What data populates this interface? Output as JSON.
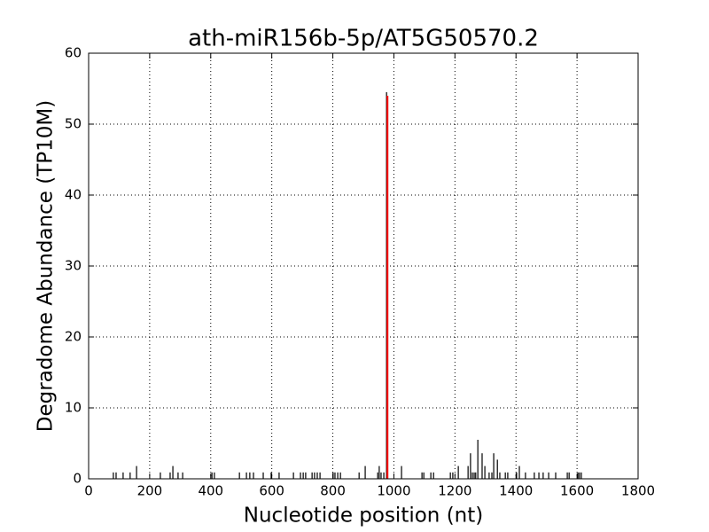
{
  "chart_data": {
    "type": "stem",
    "title": "ath-miR156b-5p/AT5G50570.2",
    "xlabel": "Nucleotide position (nt)",
    "ylabel": "Degradome Abundance (TP10M)",
    "xlim": [
      0,
      1800
    ],
    "xticks": [
      0,
      200,
      400,
      600,
      800,
      1000,
      1200,
      1400,
      1600,
      1800
    ],
    "ylim": [
      0,
      60
    ],
    "yticks": [
      0,
      10,
      20,
      30,
      40,
      50,
      60
    ],
    "grid": true,
    "series": [
      {
        "color": "#000000",
        "x": [
          81,
          90,
          113,
          136,
          157,
          235,
          267,
          276,
          293,
          308,
          404,
          412,
          494,
          517,
          528,
          540,
          572,
          598,
          624,
          671,
          694,
          703,
          711,
          732,
          740,
          749,
          758,
          801,
          807,
          816,
          825,
          886,
          906,
          947,
          952,
          958,
          967,
          976,
          1025,
          1092,
          1098,
          1121,
          1130,
          1185,
          1193,
          1211,
          1243,
          1251,
          1257,
          1263,
          1268,
          1275,
          1289,
          1298,
          1312,
          1321,
          1327,
          1339,
          1347,
          1365,
          1373,
          1402,
          1411,
          1431,
          1460,
          1475,
          1489,
          1507,
          1530,
          1568,
          1574,
          1603,
          1608,
          1614
        ],
        "values": [
          0.9,
          0.9,
          0.9,
          0.9,
          1.8,
          0.9,
          0.9,
          1.8,
          0.9,
          0.9,
          0.9,
          0.9,
          0.9,
          0.9,
          0.9,
          0.9,
          0.9,
          0.9,
          0.9,
          0.9,
          0.9,
          0.9,
          0.9,
          0.9,
          0.9,
          0.9,
          0.9,
          0.9,
          0.9,
          0.9,
          0.9,
          0.9,
          1.8,
          0.9,
          1.8,
          0.9,
          0.9,
          54.5,
          1.8,
          0.9,
          0.9,
          0.9,
          0.9,
          0.9,
          0.9,
          1.8,
          1.8,
          3.6,
          0.9,
          0.9,
          0.9,
          5.5,
          3.6,
          1.8,
          0.9,
          0.9,
          3.6,
          2.7,
          0.9,
          0.9,
          0.9,
          0.9,
          1.8,
          0.9,
          0.9,
          0.9,
          0.9,
          0.9,
          0.9,
          0.9,
          0.9,
          0.9,
          0.9,
          0.9
        ]
      },
      {
        "color": "#ff0000",
        "x": [
          979
        ],
        "values": [
          54
        ]
      }
    ]
  }
}
